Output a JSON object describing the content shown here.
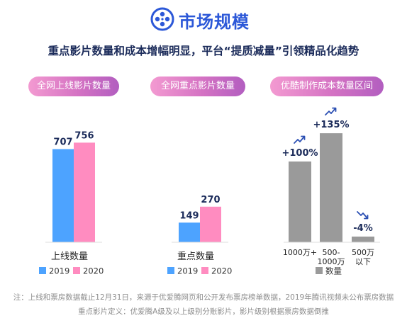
{
  "header": {
    "title": "市场规模",
    "icon": "film-reel-icon"
  },
  "headline": "重点影片数量和成本增幅明显，平台“提质减量”引领精品化趋势",
  "colors": {
    "c2019": "#4da3ff",
    "c2020": "#ff8cc0",
    "cost": "#9a9a9a",
    "arrowUp": "#2b4fb3",
    "arrowDown": "#2b4fb3",
    "value": "#1b2b5a"
  },
  "chart_data": [
    {
      "type": "bar",
      "pill": "全网上线影片数量",
      "categories": [
        "上线数量"
      ],
      "series": [
        {
          "name": "2019",
          "values": [
            707
          ]
        },
        {
          "name": "2020",
          "values": [
            756
          ]
        }
      ],
      "legend": [
        "2019",
        "2020"
      ]
    },
    {
      "type": "bar",
      "pill": "全网重点影片数量",
      "categories": [
        "重点数量"
      ],
      "series": [
        {
          "name": "2019",
          "values": [
            149
          ]
        },
        {
          "name": "2020",
          "values": [
            270
          ]
        }
      ],
      "legend": [
        "2019",
        "2020"
      ]
    },
    {
      "type": "bar",
      "pill": "优酷制作成本数量区间",
      "categories": [
        [
          "1000万+"
        ],
        [
          "500-",
          "1000万"
        ],
        [
          "500万",
          "以下"
        ]
      ],
      "changes": [
        "+100%",
        "+135%",
        "-4%"
      ],
      "directions": [
        "up",
        "up",
        "down"
      ],
      "values": [
        100,
        135,
        -4
      ],
      "legend": [
        "数量"
      ]
    }
  ],
  "notes": [
    "注：上线和票房数据截止12月31日，来源于优爱腾网页和公开发布票房榜单数据，2019年腾讯视频未公布票房数据",
    "重点影片定义：优爱腾A级及以上级别分账影片，影片级别根据票房数据倒推"
  ]
}
